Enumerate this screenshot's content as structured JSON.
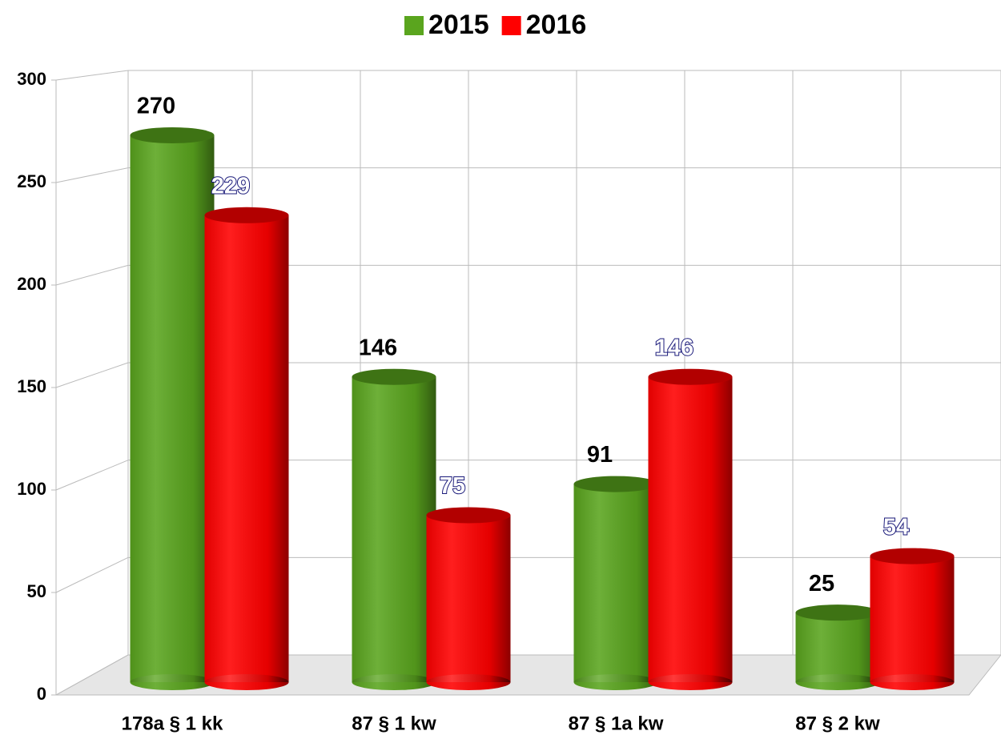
{
  "chart_data": {
    "type": "bar",
    "categories": [
      "178a § 1 kk",
      "87 § 1 kw",
      "87 § 1a kw",
      "87 § 2 kw"
    ],
    "series": [
      {
        "name": "2015",
        "color": "#5aa51e",
        "values": [
          270,
          146,
          91,
          25
        ]
      },
      {
        "name": "2016",
        "color": "#ff0000",
        "values": [
          229,
          75,
          146,
          54
        ]
      }
    ],
    "ylim": [
      0,
      300
    ],
    "yticks": [
      0,
      50,
      100,
      150,
      200,
      250,
      300
    ],
    "grid": true,
    "legend": "top"
  }
}
